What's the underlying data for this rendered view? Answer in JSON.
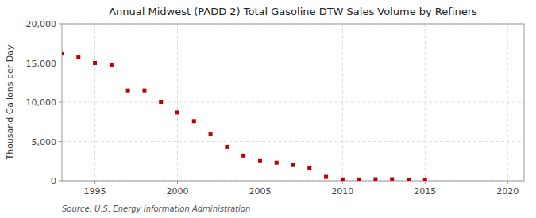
{
  "chart_data": {
    "type": "scatter",
    "title": "Annual Midwest (PADD 2) Total Gasoline DTW Sales Volume by Refiners",
    "ylabel": "Thousand Gallons per Day",
    "source": "Source: U.S. Energy Information Administration",
    "x": [
      1993,
      1994,
      1995,
      1996,
      1997,
      1998,
      1999,
      2000,
      2001,
      2002,
      2003,
      2004,
      2005,
      2006,
      2007,
      2008,
      2009,
      2010,
      2011,
      2012,
      2013,
      2014,
      2015
    ],
    "values": [
      16200,
      15700,
      15000,
      14700,
      11500,
      11500,
      10050,
      8700,
      7600,
      5900,
      4300,
      3200,
      2600,
      2300,
      2000,
      1600,
      500,
      180,
      170,
      200,
      200,
      120,
      100
    ],
    "color": "#be0000",
    "marker": "square",
    "xlim": [
      1993,
      2021
    ],
    "ylim": [
      0,
      20000
    ],
    "xticks": [
      1995,
      2000,
      2005,
      2010,
      2015,
      2020
    ],
    "yticks": [
      0,
      {
        "value": 5000,
        "label": "5,000"
      },
      {
        "value": 10000,
        "label": "10,000"
      },
      {
        "value": 15000,
        "label": "15,000"
      },
      {
        "value": 20000,
        "label": "20,000"
      }
    ],
    "grid": true
  }
}
